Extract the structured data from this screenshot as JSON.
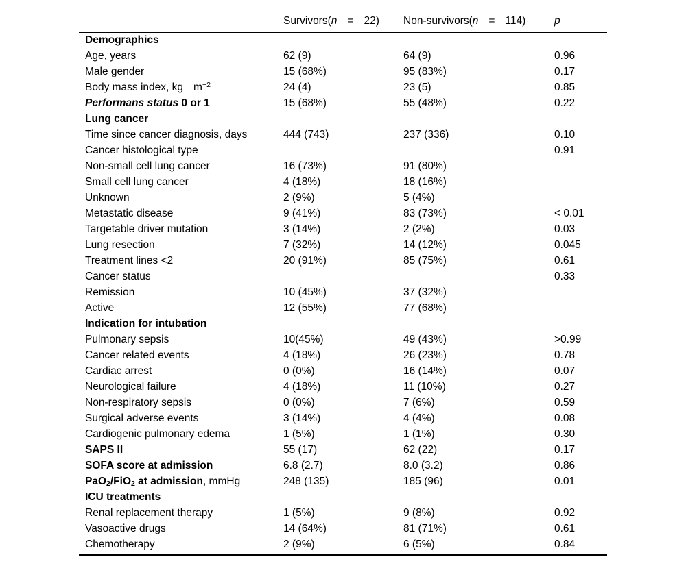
{
  "page": {
    "background": "#ffffff",
    "text_color": "#000000",
    "rule_color": "#000000"
  },
  "table": {
    "header": {
      "col_label": [],
      "col_survivors": [
        {
          "t": "Survivors(",
          "s": "r"
        },
        {
          "t": "n",
          "s": "i"
        },
        {
          "s": "gap"
        },
        {
          "t": "=",
          "s": "r"
        },
        {
          "s": "gap"
        },
        {
          "t": "22)",
          "s": "r"
        }
      ],
      "col_nonsurvivors": [
        {
          "t": "Non-survivors(",
          "s": "r"
        },
        {
          "t": "n",
          "s": "i"
        },
        {
          "s": "gap"
        },
        {
          "t": "=",
          "s": "r"
        },
        {
          "s": "gap"
        },
        {
          "t": "114)",
          "s": "r"
        }
      ],
      "col_p": [
        {
          "t": "p",
          "s": "i"
        }
      ]
    },
    "rows": [
      {
        "label": [
          {
            "t": "Demographics",
            "s": "b"
          }
        ],
        "survivors": "",
        "nonsurvivors": "",
        "p": ""
      },
      {
        "label": [
          {
            "t": "Age, years",
            "s": "r"
          }
        ],
        "survivors": "62 (9)",
        "nonsurvivors": "64 (9)",
        "p": "0.96"
      },
      {
        "label": [
          {
            "t": "Male gender",
            "s": "r"
          }
        ],
        "survivors": "15 (68%)",
        "nonsurvivors": "95 (83%)",
        "p": "0.17"
      },
      {
        "label": [
          {
            "t": "Body mass index, kg",
            "s": "r"
          },
          {
            "s": "gap"
          },
          {
            "t": "m",
            "s": "r"
          },
          {
            "t": "−2",
            "s": "sup"
          }
        ],
        "survivors": "24 (4)",
        "nonsurvivors": "23 (5)",
        "p": "0.85"
      },
      {
        "label": [
          {
            "t": "Performans status ",
            "s": "bi"
          },
          {
            "t": "0 or 1",
            "s": "b"
          }
        ],
        "survivors": "15 (68%)",
        "nonsurvivors": "55 (48%)",
        "p": "0.22"
      },
      {
        "label": [
          {
            "t": "Lung cancer",
            "s": "b"
          }
        ],
        "survivors": "",
        "nonsurvivors": "",
        "p": ""
      },
      {
        "label": [
          {
            "t": "Time since cancer diagnosis, days",
            "s": "r"
          }
        ],
        "survivors": "444 (743)",
        "nonsurvivors": "237 (336)",
        "p": "0.10"
      },
      {
        "label": [
          {
            "t": "Cancer histological type",
            "s": "r"
          }
        ],
        "survivors": "",
        "nonsurvivors": "",
        "p": "0.91"
      },
      {
        "label": [
          {
            "t": "Non-small cell lung cancer",
            "s": "r"
          }
        ],
        "survivors": "16 (73%)",
        "nonsurvivors": "91 (80%)",
        "p": ""
      },
      {
        "label": [
          {
            "t": "Small cell lung cancer",
            "s": "r"
          }
        ],
        "survivors": "4 (18%)",
        "nonsurvivors": "18 (16%)",
        "p": ""
      },
      {
        "label": [
          {
            "t": "Unknown",
            "s": "r"
          }
        ],
        "survivors": "2 (9%)",
        "nonsurvivors": "5 (4%)",
        "p": ""
      },
      {
        "label": [
          {
            "t": "Metastatic disease",
            "s": "r"
          }
        ],
        "survivors": "9 (41%)",
        "nonsurvivors": "83 (73%)",
        "p": "< 0.01"
      },
      {
        "label": [
          {
            "t": "Targetable driver mutation",
            "s": "r"
          }
        ],
        "survivors": "3 (14%)",
        "nonsurvivors": "2 (2%)",
        "p": "0.03"
      },
      {
        "label": [
          {
            "t": "Lung resection",
            "s": "r"
          }
        ],
        "survivors": "7 (32%)",
        "nonsurvivors": "14 (12%)",
        "p": "0.045"
      },
      {
        "label": [
          {
            "t": "Treatment lines <2",
            "s": "r"
          }
        ],
        "survivors": "20 (91%)",
        "nonsurvivors": "85 (75%)",
        "p": "0.61"
      },
      {
        "label": [
          {
            "t": "Cancer status",
            "s": "r"
          }
        ],
        "survivors": "",
        "nonsurvivors": "",
        "p": "0.33"
      },
      {
        "label": [
          {
            "t": "Remission",
            "s": "r"
          }
        ],
        "survivors": "10 (45%)",
        "nonsurvivors": "37 (32%)",
        "p": ""
      },
      {
        "label": [
          {
            "t": "Active",
            "s": "r"
          }
        ],
        "survivors": "12 (55%)",
        "nonsurvivors": "77 (68%)",
        "p": ""
      },
      {
        "label": [
          {
            "t": "Indication for intubation",
            "s": "b"
          }
        ],
        "survivors": "",
        "nonsurvivors": "",
        "p": ""
      },
      {
        "label": [
          {
            "t": "Pulmonary sepsis",
            "s": "r"
          }
        ],
        "survivors": "10(45%)",
        "nonsurvivors": "49 (43%)",
        "p": ">0.99"
      },
      {
        "label": [
          {
            "t": "Cancer related events",
            "s": "r"
          }
        ],
        "survivors": "4 (18%)",
        "nonsurvivors": "26 (23%)",
        "p": "0.78"
      },
      {
        "label": [
          {
            "t": "Cardiac arrest",
            "s": "r"
          }
        ],
        "survivors": "0 (0%)",
        "nonsurvivors": "16 (14%)",
        "p": "0.07"
      },
      {
        "label": [
          {
            "t": "Neurological failure",
            "s": "r"
          }
        ],
        "survivors": "4 (18%)",
        "nonsurvivors": "11 (10%)",
        "p": "0.27"
      },
      {
        "label": [
          {
            "t": "Non-respiratory sepsis",
            "s": "r"
          }
        ],
        "survivors": "0 (0%)",
        "nonsurvivors": "7 (6%)",
        "p": "0.59"
      },
      {
        "label": [
          {
            "t": "Surgical adverse events",
            "s": "r"
          }
        ],
        "survivors": "3 (14%)",
        "nonsurvivors": "4 (4%)",
        "p": "0.08"
      },
      {
        "label": [
          {
            "t": "Cardiogenic pulmonary edema",
            "s": "r"
          }
        ],
        "survivors": "1 (5%)",
        "nonsurvivors": "1 (1%)",
        "p": "0.30"
      },
      {
        "label": [
          {
            "t": "SAPS II",
            "s": "b"
          }
        ],
        "survivors": "55 (17)",
        "nonsurvivors": "62 (22)",
        "p": "0.17"
      },
      {
        "label": [
          {
            "t": "SOFA score at admission",
            "s": "b"
          }
        ],
        "survivors": "6.8 (2.7)",
        "nonsurvivors": "8.0 (3.2)",
        "p": "0.86"
      },
      {
        "label": [
          {
            "t": "PaO",
            "s": "b"
          },
          {
            "t": "2",
            "s": "bsub"
          },
          {
            "t": "/FiO",
            "s": "b"
          },
          {
            "t": "2",
            "s": "bsub"
          },
          {
            "t": " at admission",
            "s": "b"
          },
          {
            "t": ", mmHg",
            "s": "r"
          }
        ],
        "survivors": "248 (135)",
        "nonsurvivors": "185 (96)",
        "p": "0.01"
      },
      {
        "label": [
          {
            "t": "ICU treatments",
            "s": "b"
          }
        ],
        "survivors": "",
        "nonsurvivors": "",
        "p": ""
      },
      {
        "label": [
          {
            "t": "Renal replacement therapy",
            "s": "r"
          }
        ],
        "survivors": "1 (5%)",
        "nonsurvivors": "9 (8%)",
        "p": "0.92"
      },
      {
        "label": [
          {
            "t": "Vasoactive drugs",
            "s": "r"
          }
        ],
        "survivors": "14 (64%)",
        "nonsurvivors": "81 (71%)",
        "p": "0.61"
      },
      {
        "label": [
          {
            "t": "Chemotherapy",
            "s": "r"
          }
        ],
        "survivors": "2 (9%)",
        "nonsurvivors": "6 (5%)",
        "p": "0.84"
      }
    ]
  }
}
